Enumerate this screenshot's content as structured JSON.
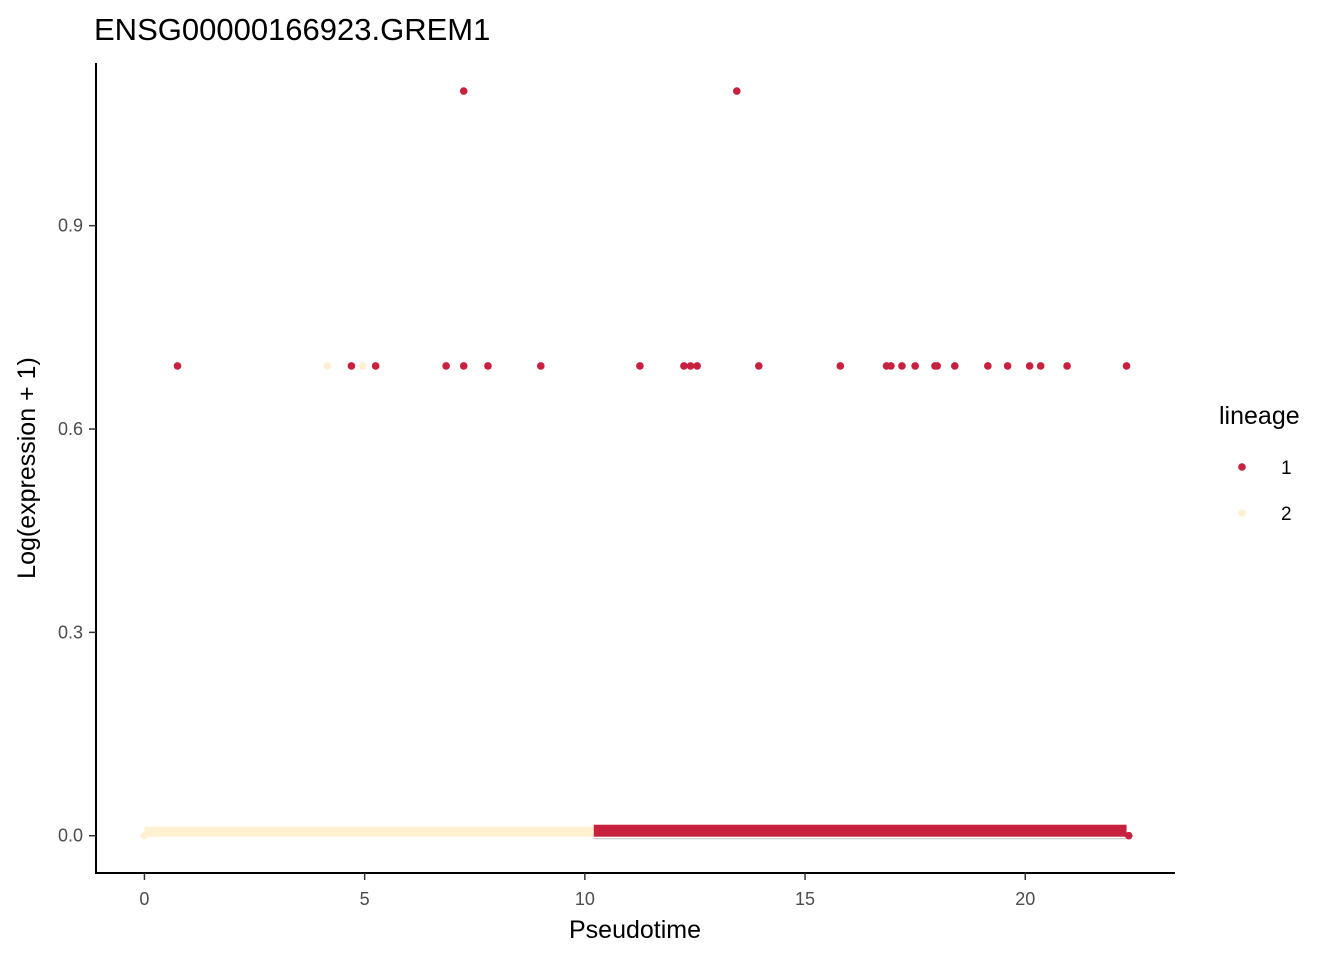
{
  "chart_data": {
    "type": "scatter",
    "title": "ENSG00000166923.GREM1",
    "xlabel": "Pseudotime",
    "ylabel": "Log(expression + 1)",
    "xlim": [
      -1.1,
      23.4
    ],
    "ylim": [
      -0.055,
      1.14
    ],
    "x_ticks": [
      0,
      5,
      10,
      15,
      20
    ],
    "x_tick_labels": [
      "0",
      "5",
      "10",
      "15",
      "20"
    ],
    "y_ticks": [
      0.0,
      0.3,
      0.6,
      0.9
    ],
    "y_tick_labels": [
      "0.0",
      "0.3",
      "0.6",
      "0.9"
    ],
    "grid": false,
    "legend": {
      "title": "lineage",
      "position": "right",
      "entries": [
        {
          "label": "1",
          "color": "#C8203F"
        },
        {
          "label": "2",
          "color": "#FFF0D2"
        }
      ]
    },
    "series": [
      {
        "name": "1",
        "color": "#C8203F",
        "points": [
          {
            "x": 0.75,
            "y": 0.693
          },
          {
            "x": 4.7,
            "y": 0.693
          },
          {
            "x": 5.25,
            "y": 0.693
          },
          {
            "x": 6.85,
            "y": 0.693
          },
          {
            "x": 7.25,
            "y": 0.693
          },
          {
            "x": 7.25,
            "y": 1.0986
          },
          {
            "x": 7.8,
            "y": 0.693
          },
          {
            "x": 9.0,
            "y": 0.693
          },
          {
            "x": 11.25,
            "y": 0.693
          },
          {
            "x": 12.25,
            "y": 0.693
          },
          {
            "x": 12.4,
            "y": 0.693
          },
          {
            "x": 12.55,
            "y": 0.693
          },
          {
            "x": 13.45,
            "y": 1.0986
          },
          {
            "x": 13.95,
            "y": 0.693
          },
          {
            "x": 15.8,
            "y": 0.693
          },
          {
            "x": 16.85,
            "y": 0.693
          },
          {
            "x": 16.95,
            "y": 0.693
          },
          {
            "x": 17.2,
            "y": 0.693
          },
          {
            "x": 17.5,
            "y": 0.693
          },
          {
            "x": 17.95,
            "y": 0.693
          },
          {
            "x": 18.0,
            "y": 0.693
          },
          {
            "x": 18.4,
            "y": 0.693
          },
          {
            "x": 19.15,
            "y": 0.693
          },
          {
            "x": 19.6,
            "y": 0.693
          },
          {
            "x": 20.1,
            "y": 0.693
          },
          {
            "x": 20.35,
            "y": 0.693
          },
          {
            "x": 20.95,
            "y": 0.693
          },
          {
            "x": 22.3,
            "y": 0.693
          },
          {
            "x": 22.35,
            "y": 0.0
          }
        ],
        "zero_band": {
          "x_start": 10.2,
          "x_end": 22.3,
          "y": 0.0
        }
      },
      {
        "name": "2",
        "color": "#FFF0D2",
        "points": [
          {
            "x": 4.15,
            "y": 0.693
          },
          {
            "x": 4.95,
            "y": 0.693
          },
          {
            "x": 0.0,
            "y": 0.0
          }
        ],
        "zero_band": {
          "x_start": 0.0,
          "x_end": 10.2,
          "y": 0.0
        }
      }
    ]
  }
}
